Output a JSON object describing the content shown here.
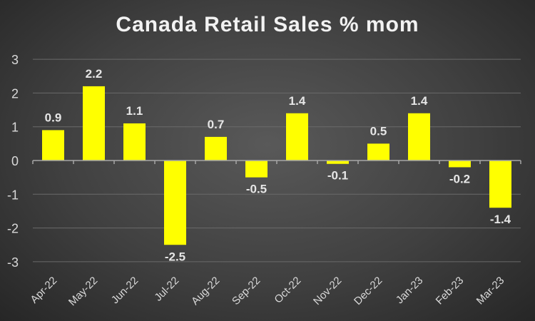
{
  "chart_data": {
    "type": "bar",
    "title": "Canada Retail Sales % mom",
    "xlabel": "",
    "ylabel": "",
    "categories": [
      "Apr-22",
      "May-22",
      "Jun-22",
      "Jul-22",
      "Aug-22",
      "Sep-22",
      "Oct-22",
      "Nov-22",
      "Dec-22",
      "Jan-23",
      "Feb-23",
      "Mar-23"
    ],
    "values": [
      0.9,
      2.2,
      1.1,
      -2.5,
      0.7,
      -0.5,
      1.4,
      -0.1,
      0.5,
      1.4,
      -0.2,
      -1.4
    ],
    "ylim": [
      -3,
      3
    ],
    "yticks": [
      3,
      2,
      1,
      0,
      -1,
      -2,
      -3
    ],
    "grid": true,
    "legend": "none",
    "bar_color": "#ffff00"
  }
}
